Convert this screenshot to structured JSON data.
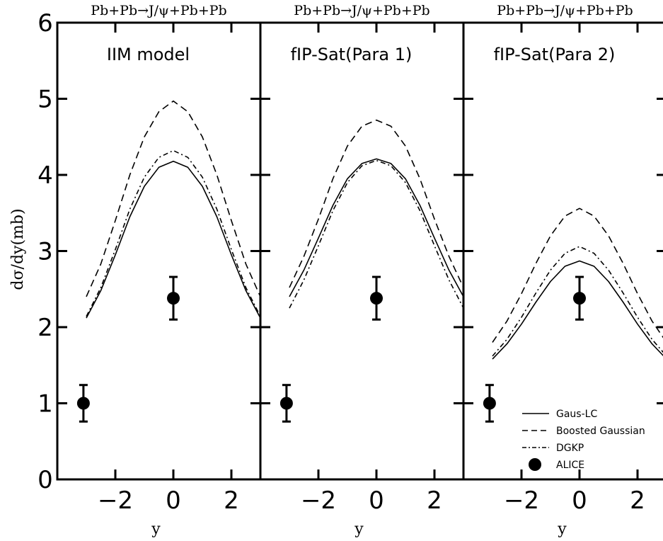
{
  "chart_data": {
    "type": "line",
    "ylabel": "dσ/dy(mb)",
    "xlabel": "y",
    "ylim": [
      0,
      6
    ],
    "xlim": [
      -4.0,
      3.0
    ],
    "xticks": [
      -2,
      0,
      2
    ],
    "yticks": [
      0,
      1,
      2,
      3,
      4,
      5,
      6
    ],
    "panel_labels": [
      "IIM model",
      "fIP-Sat(Para 1)",
      "fIP-Sat(Para 2)"
    ],
    "panel_titles": [
      "Pb+Pb→J/ψ+Pb+Pb",
      "Pb+Pb→J/ψ+Pb+Pb",
      "Pb+Pb→J/ψ+Pb+Pb"
    ],
    "legend": {
      "placement": "bottom-right",
      "entries": [
        {
          "label": "Gaus-LC",
          "style": "solid"
        },
        {
          "label": "Boosted Gaussian",
          "style": "dashed"
        },
        {
          "label": "DGKP",
          "style": "dashdot"
        },
        {
          "label": "ALICE",
          "style": "marker"
        }
      ]
    },
    "x": [
      -3.0,
      -2.5,
      -2.0,
      -1.5,
      -1.0,
      -0.5,
      0.0,
      0.5,
      1.0,
      1.5,
      2.0,
      2.5,
      3.0
    ],
    "panels": [
      {
        "series": [
          {
            "name": "Gaus-LC",
            "values": [
              2.12,
              2.48,
              2.95,
              3.45,
              3.85,
              4.1,
              4.18,
              4.1,
              3.85,
              3.45,
              2.95,
              2.48,
              2.12
            ]
          },
          {
            "name": "Boosted Gaussian",
            "values": [
              2.4,
              2.83,
              3.4,
              4.0,
              4.5,
              4.83,
              4.97,
              4.83,
              4.5,
              4.0,
              3.4,
              2.83,
              2.4
            ]
          },
          {
            "name": "DGKP",
            "values": [
              2.14,
              2.52,
              3.02,
              3.55,
              3.97,
              4.23,
              4.32,
              4.23,
              3.97,
              3.55,
              3.02,
              2.52,
              2.14
            ]
          }
        ],
        "alice": [
          {
            "x": -3.1,
            "y": 1.0,
            "err": 0.24
          },
          {
            "x": 0.0,
            "y": 2.38,
            "err": 0.28
          }
        ]
      },
      {
        "series": [
          {
            "name": "Gaus-LC",
            "values": [
              2.4,
              2.75,
              3.17,
              3.6,
              3.95,
              4.15,
              4.21,
              4.15,
              3.95,
              3.6,
              3.17,
              2.75,
              2.4
            ]
          },
          {
            "name": "Boosted Gaussian",
            "values": [
              2.52,
              2.93,
              3.42,
              3.95,
              4.38,
              4.64,
              4.72,
              4.64,
              4.38,
              3.95,
              3.42,
              2.93,
              2.52
            ]
          },
          {
            "name": "DGKP",
            "values": [
              2.25,
              2.62,
              3.07,
              3.53,
              3.9,
              4.12,
              4.19,
              4.12,
              3.9,
              3.53,
              3.07,
              2.62,
              2.25
            ]
          }
        ],
        "alice": [
          {
            "x": -3.1,
            "y": 1.0,
            "err": 0.24
          },
          {
            "x": 0.0,
            "y": 2.38,
            "err": 0.28
          }
        ]
      },
      {
        "series": [
          {
            "name": "Gaus-LC",
            "values": [
              1.58,
              1.78,
              2.04,
              2.33,
              2.6,
              2.8,
              2.87,
              2.8,
              2.6,
              2.33,
              2.04,
              1.78,
              1.58
            ]
          },
          {
            "name": "Boosted Gaussian",
            "values": [
              1.8,
              2.08,
              2.44,
              2.84,
              3.2,
              3.46,
              3.56,
              3.46,
              3.2,
              2.84,
              2.44,
              2.08,
              1.8
            ]
          },
          {
            "name": "DGKP",
            "values": [
              1.62,
              1.84,
              2.13,
              2.45,
              2.75,
              2.97,
              3.06,
              2.97,
              2.75,
              2.45,
              2.13,
              1.84,
              1.62
            ]
          }
        ],
        "alice": [
          {
            "x": -3.1,
            "y": 1.0,
            "err": 0.24
          },
          {
            "x": 0.0,
            "y": 2.38,
            "err": 0.28
          }
        ]
      }
    ]
  }
}
